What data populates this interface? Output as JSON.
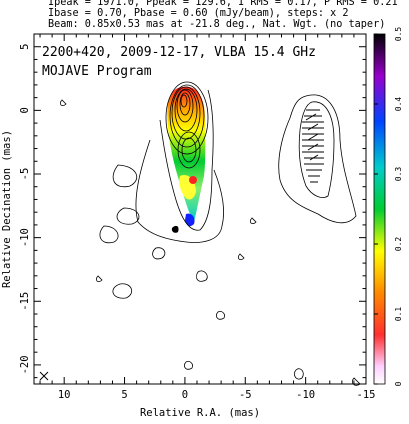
{
  "header": {
    "line1": "Ipeak = 1971.0, Ppeak = 129.6, I RMS = 0.17, P RMS = 0.21",
    "line2": "Ibase = 0.70, Pbase = 0.60 (mJy/beam), steps: x 2",
    "line3": "Beam: 0.85x0.53 mas at -21.8 deg., Nat. Wgt. (no taper)"
  },
  "chart_data": {
    "type": "contour",
    "title": "2200+420, 2009-12-17, VLBA 15.4 GHz",
    "subtitle": "MOJAVE Program",
    "xlabel": "Relative R.A. (mas)",
    "ylabel": "Relative Decination (mas)",
    "xlim": [
      12.5,
      -15
    ],
    "ylim": [
      -21.5,
      6
    ],
    "x_ticks": [
      10,
      5,
      0,
      -5,
      -10,
      -15
    ],
    "x_tick_labels": [
      "10",
      "5",
      "0",
      "-5",
      "-10",
      "-15"
    ],
    "y_ticks": [
      5,
      0,
      -5,
      -10,
      -15,
      -20
    ],
    "y_tick_labels": [
      "5",
      "0",
      "-5",
      "-10",
      "-15",
      "-20"
    ],
    "colorbar": {
      "min": 0,
      "max": 0.5,
      "ticks": [
        0,
        0.1,
        0.2,
        0.3,
        0.4,
        0.5
      ],
      "tick_labels": [
        "0",
        "0.1",
        "0.2",
        "0.3",
        "0.4",
        "0.5"
      ]
    },
    "panels": [
      {
        "name": "total intensity + fractional polarization",
        "core_ra": 0,
        "core_dec": 0,
        "jet_end_dec": -9
      },
      {
        "name": "polarization vectors",
        "core_ra": -10,
        "core_dec": 0,
        "jet_end_dec": -6.5
      }
    ],
    "beam": {
      "major_mas": 0.85,
      "minor_mas": 0.53,
      "pa_deg": -21.8
    }
  }
}
